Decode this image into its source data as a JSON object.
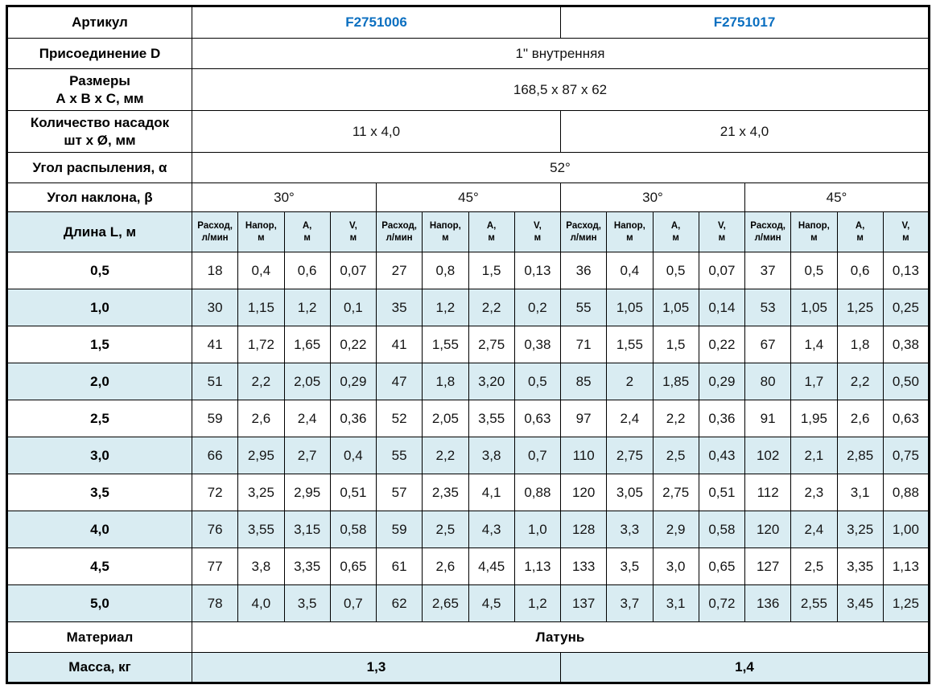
{
  "colors": {
    "stripe": "#d9ecf2",
    "border": "#000000",
    "article_blue": "#0b6fc0",
    "text": "#141414"
  },
  "specs": {
    "article": {
      "label": "Артикул",
      "values": [
        "F2751006",
        "F2751017"
      ]
    },
    "connection": {
      "label": "Присоединение D",
      "value": "1\" внутренняя"
    },
    "dimensions": {
      "label": "Размеры\nА х В х С, мм",
      "value": "168,5 х 87 х 62"
    },
    "nozzles": {
      "label": "Количество насадок\nшт х Ø, мм",
      "values": [
        "11 х 4,0",
        "21 х 4,0"
      ]
    },
    "spray_angle": {
      "label": "Угол распыления, α",
      "value": "52°"
    },
    "tilt_angle": {
      "label": "Угол наклона, β",
      "values": [
        "30°",
        "45°",
        "30°",
        "45°"
      ]
    }
  },
  "table": {
    "length_label": "Длина L, м",
    "col_headers": [
      "Расход,\nл/мин",
      "Напор,\nм",
      "А,\nм",
      "V,\nм"
    ],
    "rows": [
      {
        "length": "0,5",
        "values": [
          "18",
          "0,4",
          "0,6",
          "0,07",
          "27",
          "0,8",
          "1,5",
          "0,13",
          "36",
          "0,4",
          "0,5",
          "0,07",
          "37",
          "0,5",
          "0,6",
          "0,13"
        ]
      },
      {
        "length": "1,0",
        "values": [
          "30",
          "1,15",
          "1,2",
          "0,1",
          "35",
          "1,2",
          "2,2",
          "0,2",
          "55",
          "1,05",
          "1,05",
          "0,14",
          "53",
          "1,05",
          "1,25",
          "0,25"
        ]
      },
      {
        "length": "1,5",
        "values": [
          "41",
          "1,72",
          "1,65",
          "0,22",
          "41",
          "1,55",
          "2,75",
          "0,38",
          "71",
          "1,55",
          "1,5",
          "0,22",
          "67",
          "1,4",
          "1,8",
          "0,38"
        ]
      },
      {
        "length": "2,0",
        "values": [
          "51",
          "2,2",
          "2,05",
          "0,29",
          "47",
          "1,8",
          "3,20",
          "0,5",
          "85",
          "2",
          "1,85",
          "0,29",
          "80",
          "1,7",
          "2,2",
          "0,50"
        ]
      },
      {
        "length": "2,5",
        "values": [
          "59",
          "2,6",
          "2,4",
          "0,36",
          "52",
          "2,05",
          "3,55",
          "0,63",
          "97",
          "2,4",
          "2,2",
          "0,36",
          "91",
          "1,95",
          "2,6",
          "0,63"
        ]
      },
      {
        "length": "3,0",
        "values": [
          "66",
          "2,95",
          "2,7",
          "0,4",
          "55",
          "2,2",
          "3,8",
          "0,7",
          "110",
          "2,75",
          "2,5",
          "0,43",
          "102",
          "2,1",
          "2,85",
          "0,75"
        ]
      },
      {
        "length": "3,5",
        "values": [
          "72",
          "3,25",
          "2,95",
          "0,51",
          "57",
          "2,35",
          "4,1",
          "0,88",
          "120",
          "3,05",
          "2,75",
          "0,51",
          "112",
          "2,3",
          "3,1",
          "0,88"
        ]
      },
      {
        "length": "4,0",
        "values": [
          "76",
          "3,55",
          "3,15",
          "0,58",
          "59",
          "2,5",
          "4,3",
          "1,0",
          "128",
          "3,3",
          "2,9",
          "0,58",
          "120",
          "2,4",
          "3,25",
          "1,00"
        ]
      },
      {
        "length": "4,5",
        "values": [
          "77",
          "3,8",
          "3,35",
          "0,65",
          "61",
          "2,6",
          "4,45",
          "1,13",
          "133",
          "3,5",
          "3,0",
          "0,65",
          "127",
          "2,5",
          "3,35",
          "1,13"
        ]
      },
      {
        "length": "5,0",
        "values": [
          "78",
          "4,0",
          "3,5",
          "0,7",
          "62",
          "2,65",
          "4,5",
          "1,2",
          "137",
          "3,7",
          "3,1",
          "0,72",
          "136",
          "2,55",
          "3,45",
          "1,25"
        ]
      }
    ]
  },
  "footer": {
    "material": {
      "label": "Материал",
      "value": "Латунь"
    },
    "mass": {
      "label": "Масса, кг",
      "values": [
        "1,3",
        "1,4"
      ]
    }
  }
}
